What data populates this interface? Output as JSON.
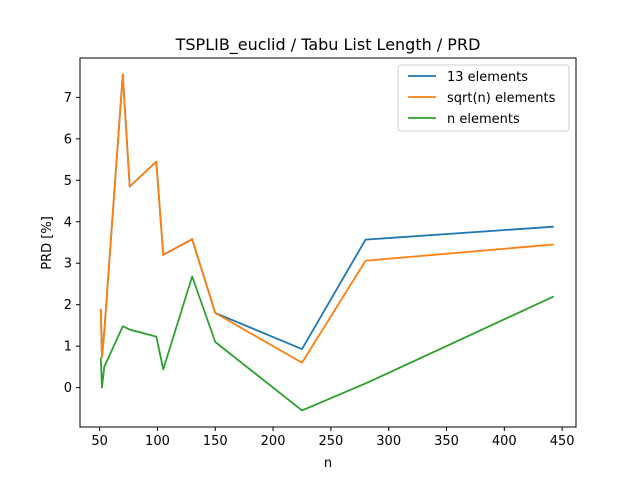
{
  "chart_data": {
    "type": "line",
    "title": "TSPLIB_euclid / Tabu List Length / PRD",
    "xlabel": "n",
    "ylabel": "PRD [%]",
    "xlim": [
      33,
      462
    ],
    "ylim": [
      -0.95,
      7.95
    ],
    "xticks": [
      50,
      100,
      150,
      200,
      250,
      300,
      350,
      400,
      450
    ],
    "yticks": [
      0,
      1,
      2,
      3,
      4,
      5,
      6,
      7
    ],
    "legend_position": "top-right",
    "series": [
      {
        "name": "13 elements",
        "color": "#1f77b4",
        "points": [
          [
            51,
            1.87
          ],
          [
            52,
            0.73
          ],
          [
            54,
            1.35
          ],
          [
            70,
            7.55
          ],
          [
            76,
            4.85
          ],
          [
            99,
            5.45
          ],
          [
            105,
            3.2
          ],
          [
            130,
            3.58
          ],
          [
            150,
            1.8
          ],
          [
            225,
            0.93
          ],
          [
            280,
            3.57
          ],
          [
            442,
            3.88
          ]
        ]
      },
      {
        "name": "sqrt(n) elements",
        "color": "#ff7f0e",
        "points": [
          [
            51,
            1.87
          ],
          [
            52,
            0.73
          ],
          [
            54,
            1.35
          ],
          [
            70,
            7.55
          ],
          [
            76,
            4.85
          ],
          [
            99,
            5.45
          ],
          [
            105,
            3.2
          ],
          [
            130,
            3.58
          ],
          [
            150,
            1.8
          ],
          [
            225,
            0.6
          ],
          [
            280,
            3.06
          ],
          [
            442,
            3.45
          ]
        ]
      },
      {
        "name": "n elements",
        "color": "#2ca02c",
        "points": [
          [
            51,
            0.7
          ],
          [
            52,
            0.0
          ],
          [
            54,
            0.5
          ],
          [
            70,
            1.48
          ],
          [
            76,
            1.4
          ],
          [
            99,
            1.23
          ],
          [
            105,
            0.44
          ],
          [
            130,
            2.68
          ],
          [
            150,
            1.1
          ],
          [
            225,
            -0.55
          ],
          [
            280,
            0.1
          ],
          [
            442,
            2.19
          ]
        ]
      }
    ]
  }
}
